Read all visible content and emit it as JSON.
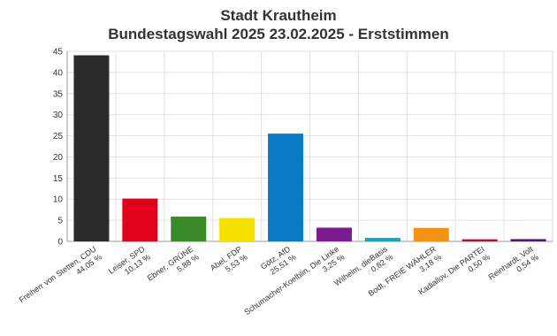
{
  "chart_data": {
    "type": "bar",
    "title": "Stadt Krautheim",
    "subtitle": "Bundestagswahl 2025 23.02.2025  - Erststimmen",
    "xlabel": "",
    "ylabel": "",
    "ylim": [
      0,
      45
    ],
    "yticks": [
      "0",
      "5",
      "10",
      "15",
      "20",
      "25",
      "30",
      "35",
      "40",
      "45"
    ],
    "grid": true,
    "categories": [
      "Freiherr von Stetten, CDU",
      "Leiser, SPD",
      "Ebner, GRÜNE",
      "Abel, FDP",
      "Götz, AfD",
      "Schumacher-Koelblin, Die Linke",
      "Wilhelm, dieBasis",
      "Bodt, FREIE WÄHLER",
      "Kadiallov, Die PARTEI",
      "Reinhardt, Volt"
    ],
    "value_labels": [
      "44,05 %",
      "10,13 %",
      "5,88 %",
      "5,53 %",
      "25,51 %",
      "3,25 %",
      "0,82 %",
      "3,18 %",
      "0,50 %",
      "0,54 %"
    ],
    "values": [
      44.05,
      10.13,
      5.88,
      5.53,
      25.51,
      3.25,
      0.82,
      3.18,
      0.5,
      0.54
    ],
    "colors": [
      "#2b2b2b",
      "#e3001b",
      "#3a8a2a",
      "#f5e100",
      "#0a7bc4",
      "#7a1b8e",
      "#1aa3b8",
      "#f39314",
      "#b5122f",
      "#4b1a6e"
    ]
  }
}
